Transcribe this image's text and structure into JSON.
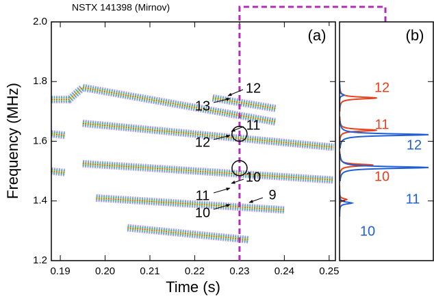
{
  "chart_data": [
    {
      "type": "spectrogram",
      "title": "NSTX 141398 (Mirnov)",
      "panel_label": "(a)",
      "x_label": "Time (s)",
      "y_label": "Frequency (MHz)",
      "xlim": [
        0.188,
        0.2514
      ],
      "ylim": [
        1.2,
        2.0
      ],
      "xticks": [
        0.19,
        {
          "value": 0.2,
          "label": "0.20"
        },
        0.21,
        0.22,
        0.23,
        0.24,
        0.25
      ],
      "yticks": [
        1.2,
        1.4,
        1.6,
        1.8,
        {
          "value": 2.0,
          "label": "2.0"
        }
      ],
      "marker_time": 0.23,
      "highlights": [
        {
          "x": 0.23,
          "y": 1.625
        },
        {
          "x": 0.23,
          "y": 1.51
        }
      ],
      "bands": [
        {
          "x": [
            0.188,
            0.192,
            0.195,
            0.238
          ],
          "y": [
            1.74,
            1.74,
            1.78,
            1.665
          ]
        },
        {
          "x": [
            0.224,
            0.238
          ],
          "y": [
            1.745,
            1.71
          ]
        },
        {
          "x": [
            0.195,
            0.251
          ],
          "y": [
            1.66,
            1.58
          ]
        },
        {
          "x": [
            0.188,
            0.191
          ],
          "y": [
            1.625,
            1.62
          ]
        },
        {
          "x": [
            0.195,
            0.251
          ],
          "y": [
            1.525,
            1.47
          ]
        },
        {
          "x": [
            0.188,
            0.191
          ],
          "y": [
            1.5,
            1.495
          ]
        },
        {
          "x": [
            0.198,
            0.24
          ],
          "y": [
            1.41,
            1.37
          ]
        },
        {
          "x": [
            0.205,
            0.232
          ],
          "y": [
            1.31,
            1.27
          ]
        }
      ],
      "annotations": [
        "12",
        "13",
        "11",
        "12",
        "10",
        "11",
        "9",
        "10"
      ]
    },
    {
      "type": "spectrum",
      "panel_label": "(b)",
      "ylim": [
        1.2,
        2.0
      ],
      "yticks": [
        1.2,
        1.4,
        1.6,
        1.8,
        {
          "value": 2.0,
          "label": "2.0"
        }
      ],
      "series": [
        {
          "color": "#e8401c",
          "peaks": [
            {
              "freq": 1.745,
              "amplitude": 0.42,
              "label": "12"
            },
            {
              "freq": 1.637,
              "amplitude": 0.42,
              "label": "11"
            },
            {
              "freq": 1.52,
              "amplitude": 0.38,
              "label": "10"
            },
            {
              "freq": 1.405,
              "amplitude": 0.08
            }
          ]
        },
        {
          "color": "#1f5fd6",
          "peaks": [
            {
              "freq": 1.622,
              "amplitude": 1.0,
              "label": "12"
            },
            {
              "freq": 1.512,
              "amplitude": 1.0,
              "label": "11"
            },
            {
              "freq": 1.393,
              "amplitude": 0.14,
              "label": "10"
            },
            {
              "freq": 1.755,
              "amplitude": 0.05
            }
          ]
        }
      ]
    }
  ]
}
